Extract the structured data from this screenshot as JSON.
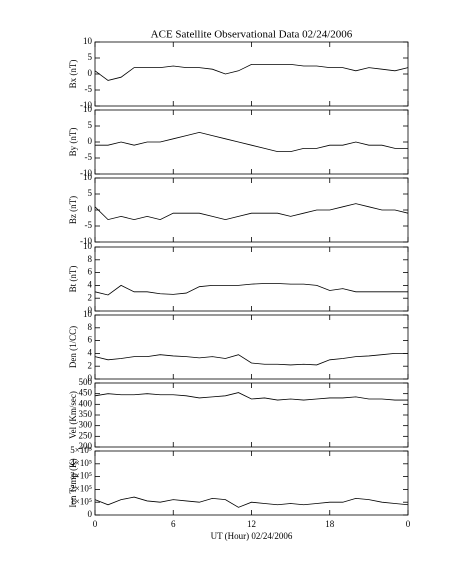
{
  "chart_data": [
    {
      "type": "line",
      "title": "ACE Satellite Observational Data   02/24/2006",
      "ylabel": "Bx (nT)",
      "x": [
        0,
        1,
        2,
        3,
        4,
        5,
        6,
        7,
        8,
        9,
        10,
        11,
        12,
        13,
        14,
        15,
        16,
        17,
        18,
        19,
        20,
        21,
        22,
        23,
        24
      ],
      "values": [
        1,
        -2,
        -1,
        2,
        2,
        2,
        2.5,
        2,
        2,
        1.5,
        0,
        1,
        3,
        3,
        3,
        3,
        2.5,
        2.5,
        2,
        2,
        1,
        2,
        1.5,
        1,
        2
      ],
      "ylim": [
        -10,
        10
      ],
      "yticks": [
        -10,
        -5,
        0,
        5,
        10
      ],
      "xlim": [
        0,
        24
      ],
      "color": "#000000"
    },
    {
      "type": "line",
      "ylabel": "By (nT)",
      "x": [
        0,
        1,
        2,
        3,
        4,
        5,
        6,
        7,
        8,
        9,
        10,
        11,
        12,
        13,
        14,
        15,
        16,
        17,
        18,
        19,
        20,
        21,
        22,
        23,
        24
      ],
      "values": [
        -1,
        -1,
        0,
        -1,
        0,
        0,
        1,
        2,
        3,
        2,
        1,
        0,
        -1,
        -2,
        -3,
        -3,
        -2,
        -2,
        -1,
        -1,
        0,
        -1,
        -1,
        -2,
        -2
      ],
      "ylim": [
        -10,
        10
      ],
      "yticks": [
        -10,
        -5,
        0,
        5,
        10
      ],
      "xlim": [
        0,
        24
      ],
      "color": "#000000"
    },
    {
      "type": "line",
      "ylabel": "Bz (nT)",
      "x": [
        0,
        1,
        2,
        3,
        4,
        5,
        6,
        7,
        8,
        9,
        10,
        11,
        12,
        13,
        14,
        15,
        16,
        17,
        18,
        19,
        20,
        21,
        22,
        23,
        24
      ],
      "values": [
        1,
        -3,
        -2,
        -3,
        -2,
        -3,
        -1,
        -1,
        -1,
        -2,
        -3,
        -2,
        -1,
        -1,
        -1,
        -2,
        -1,
        0,
        0,
        1,
        2,
        1,
        0,
        0,
        -1
      ],
      "ylim": [
        -10,
        10
      ],
      "yticks": [
        -10,
        -5,
        0,
        5,
        10
      ],
      "xlim": [
        0,
        24
      ],
      "color": "#000000"
    },
    {
      "type": "line",
      "ylabel": "Bt (nT)",
      "x": [
        0,
        1,
        2,
        3,
        4,
        5,
        6,
        7,
        8,
        9,
        10,
        11,
        12,
        13,
        14,
        15,
        16,
        17,
        18,
        19,
        20,
        21,
        22,
        23,
        24
      ],
      "values": [
        3,
        2.5,
        4,
        3,
        3,
        2.7,
        2.6,
        2.8,
        3.8,
        4,
        4,
        4,
        4.2,
        4.3,
        4.3,
        4.2,
        4.2,
        4,
        3.2,
        3.5,
        3,
        3,
        3,
        3,
        3
      ],
      "ylim": [
        0,
        10
      ],
      "yticks": [
        0,
        2,
        4,
        6,
        8,
        10
      ],
      "xlim": [
        0,
        24
      ],
      "color": "#000000"
    },
    {
      "type": "line",
      "ylabel": "Den (1/CC)",
      "x": [
        0,
        1,
        2,
        3,
        4,
        5,
        6,
        7,
        8,
        9,
        10,
        11,
        12,
        13,
        14,
        15,
        16,
        17,
        18,
        19,
        20,
        21,
        22,
        23,
        24
      ],
      "values": [
        3.5,
        3,
        3.2,
        3.5,
        3.5,
        3.8,
        3.6,
        3.5,
        3.3,
        3.5,
        3.2,
        3.8,
        2.5,
        2.3,
        2.3,
        2.2,
        2.3,
        2.2,
        3,
        3.2,
        3.5,
        3.6,
        3.8,
        4,
        4
      ],
      "ylim": [
        0,
        10
      ],
      "yticks": [
        0,
        2,
        4,
        6,
        8,
        10
      ],
      "xlim": [
        0,
        24
      ],
      "color": "#000000"
    },
    {
      "type": "line",
      "ylabel": "Vel (Km/sec)",
      "x": [
        0,
        1,
        2,
        3,
        4,
        5,
        6,
        7,
        8,
        9,
        10,
        11,
        12,
        13,
        14,
        15,
        16,
        17,
        18,
        19,
        20,
        21,
        22,
        23,
        24
      ],
      "values": [
        440,
        450,
        445,
        445,
        450,
        445,
        445,
        440,
        430,
        435,
        440,
        455,
        425,
        430,
        420,
        425,
        420,
        425,
        430,
        430,
        435,
        425,
        425,
        420,
        420
      ],
      "ylim": [
        200,
        500
      ],
      "yticks": [
        200,
        250,
        300,
        350,
        400,
        450,
        500
      ],
      "xlim": [
        0,
        24
      ],
      "color": "#000000"
    },
    {
      "type": "line",
      "ylabel": "Ion Temp (K)",
      "xlabel": "UT (Hour)   02/24/2006",
      "x": [
        0,
        1,
        2,
        3,
        4,
        5,
        6,
        7,
        8,
        9,
        10,
        11,
        12,
        13,
        14,
        15,
        16,
        17,
        18,
        19,
        20,
        21,
        22,
        23,
        24
      ],
      "values": [
        120000,
        80000,
        120000,
        140000,
        110000,
        100000,
        120000,
        110000,
        100000,
        130000,
        120000,
        60000,
        100000,
        90000,
        80000,
        90000,
        80000,
        90000,
        100000,
        100000,
        130000,
        120000,
        100000,
        90000,
        80000
      ],
      "ylim": [
        0,
        500000
      ],
      "yticks": [
        0,
        {
          "value": 100000,
          "label": "1×10⁵"
        },
        {
          "value": 200000,
          "label": "2×10⁵"
        },
        {
          "value": 300000,
          "label": "3×10⁵"
        },
        {
          "value": 400000,
          "label": "4×10⁵"
        },
        {
          "value": 500000,
          "label": "5×10⁵"
        }
      ],
      "xlim": [
        0,
        24
      ],
      "xticks": [
        0,
        6,
        12,
        18,
        {
          "value": 24,
          "label": "0"
        }
      ],
      "color": "#000000"
    }
  ]
}
